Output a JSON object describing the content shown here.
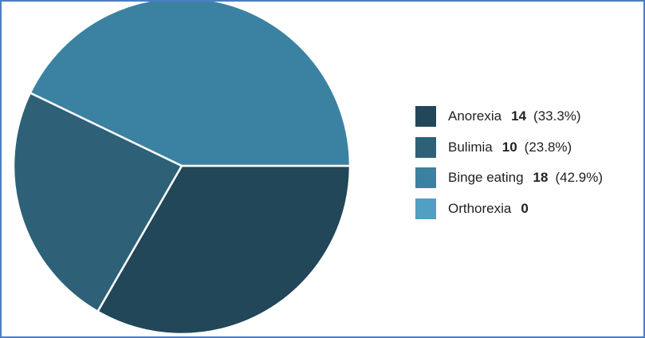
{
  "chart_data": {
    "type": "pie",
    "title": "",
    "slices": [
      {
        "label": "Anorexia",
        "count": 14,
        "count_text": "14",
        "pct_text": "(33.3%)",
        "color": "#214759"
      },
      {
        "label": "Bulimia",
        "count": 10,
        "count_text": "10",
        "pct_text": "(23.8%)",
        "color": "#2e6178"
      },
      {
        "label": "Binge eating",
        "count": 18,
        "count_text": "18",
        "pct_text": "(42.9%)",
        "color": "#3b82a2"
      },
      {
        "label": "Orthorexia",
        "count": 0,
        "count_text": "0",
        "pct_text": "",
        "color": "#519fc2"
      }
    ],
    "legend_position": "right",
    "slice_border_color": "#ffffff"
  },
  "frame_border_color": "#4a7ec2"
}
